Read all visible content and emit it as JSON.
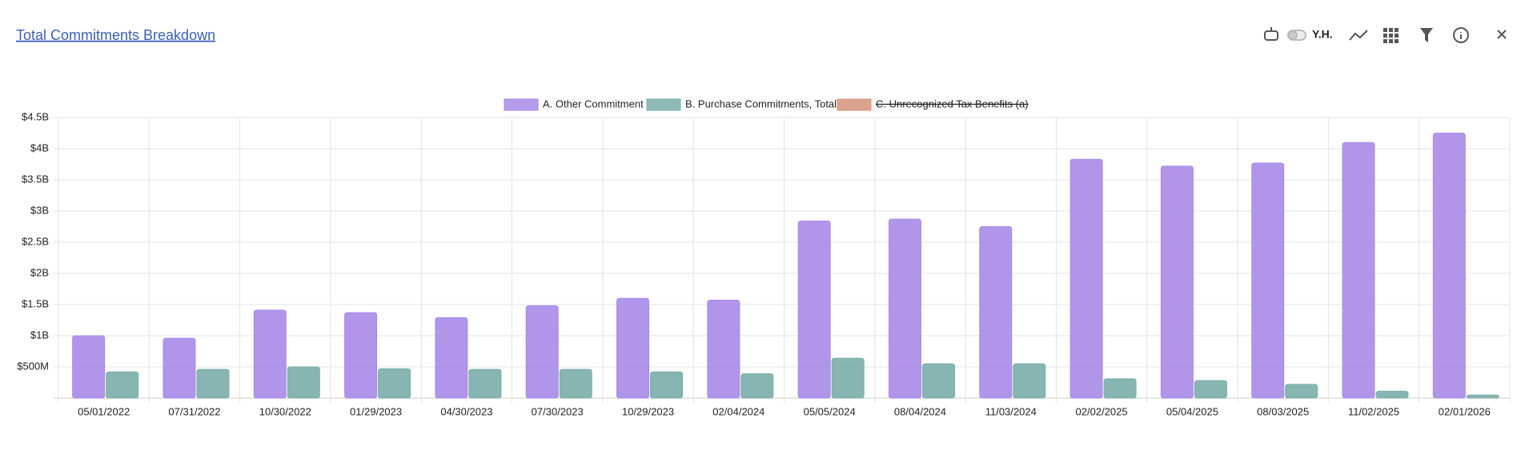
{
  "header": {
    "title": "Total Commitments Breakdown",
    "user": "Y.H."
  },
  "chart_data": {
    "type": "bar",
    "categories": [
      "05/01/2022",
      "07/31/2022",
      "10/30/2022",
      "01/29/2023",
      "04/30/2023",
      "07/30/2023",
      "10/29/2023",
      "02/04/2024",
      "05/05/2024",
      "08/04/2024",
      "11/03/2024",
      "02/02/2025",
      "05/04/2025",
      "08/03/2025",
      "11/02/2025",
      "02/01/2026"
    ],
    "series": [
      {
        "name": "A. Other Commitment",
        "color": "#a98ae8",
        "values": [
          1000000000,
          960000000,
          1410000000,
          1370000000,
          1290000000,
          1480000000,
          1600000000,
          1570000000,
          2840000000,
          2870000000,
          2750000000,
          3830000000,
          3720000000,
          3770000000,
          4100000000,
          4250000000
        ]
      },
      {
        "name": "B. Purchase Commitments, Total",
        "color": "#7aada9",
        "values": [
          420000000,
          460000000,
          500000000,
          470000000,
          460000000,
          460000000,
          420000000,
          390000000,
          640000000,
          550000000,
          550000000,
          310000000,
          280000000,
          220000000,
          110000000,
          50000000
        ]
      },
      {
        "name": "C. Unrecognized Tax Benefits (a)",
        "color": "#d4937a",
        "hidden": true,
        "values": [
          null,
          null,
          null,
          null,
          null,
          null,
          null,
          null,
          null,
          null,
          null,
          null,
          null,
          null,
          null,
          null
        ]
      }
    ],
    "ylim": [
      0,
      4500000000
    ],
    "yticks": [
      {
        "value": 500000000,
        "label": "$500M"
      },
      {
        "value": 1000000000,
        "label": "$1B"
      },
      {
        "value": 1500000000,
        "label": "$1.5B"
      },
      {
        "value": 2000000000,
        "label": "$2B"
      },
      {
        "value": 2500000000,
        "label": "$2.5B"
      },
      {
        "value": 3000000000,
        "label": "$3B"
      },
      {
        "value": 3500000000,
        "label": "$3.5B"
      },
      {
        "value": 4000000000,
        "label": "$4B"
      },
      {
        "value": 4500000000,
        "label": "$4.5B"
      }
    ],
    "grid": true
  }
}
